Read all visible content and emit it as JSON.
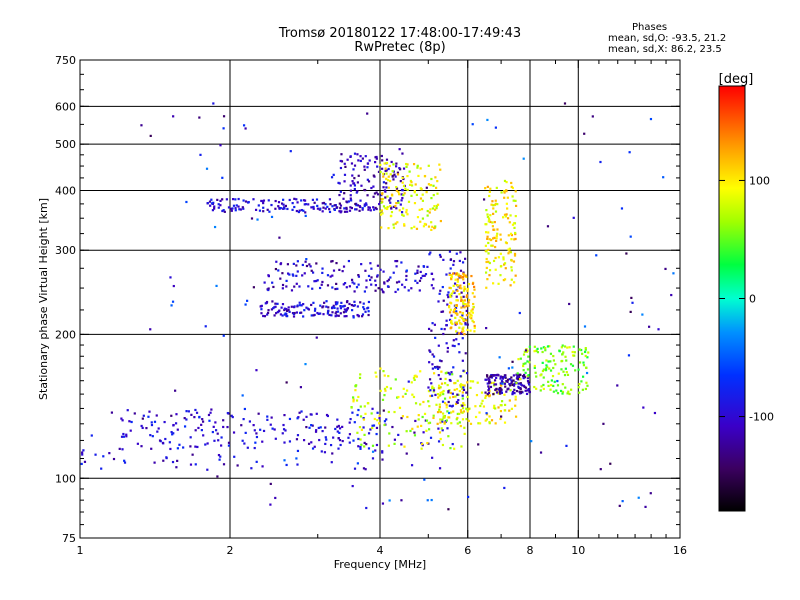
{
  "title_line1": "Tromsø 20180122 17:48:00-17:49:43",
  "title_line2": "RwPretec (8p)",
  "phases": {
    "heading": "Phases",
    "line_o": "mean, sd,O: -93.5, 21.2",
    "line_x": "mean, sd,X:  86.2, 23.5"
  },
  "colorbar": {
    "label": "[deg]",
    "ticks": [
      "100",
      "0",
      "-100"
    ],
    "tick_values": [
      100,
      0,
      -100
    ],
    "range": [
      -180,
      180
    ]
  },
  "chart_data": {
    "type": "scatter",
    "xlabel": "Frequency [MHz]",
    "ylabel": "Stationary phase Virtual Height [km]",
    "xscale": "log",
    "yscale": "log",
    "xlim": [
      1,
      16
    ],
    "ylim": [
      75,
      750
    ],
    "xticks": [
      1,
      2,
      4,
      6,
      8,
      10,
      16
    ],
    "xtick_labels": [
      "1",
      "2",
      "4",
      "6",
      "8",
      "10",
      "16"
    ],
    "yticks": [
      75,
      100,
      200,
      300,
      400,
      500,
      600,
      750
    ],
    "ytick_labels": [
      "75",
      "100",
      "200",
      "300",
      "400",
      "500",
      "600",
      "750"
    ],
    "grid_x": [
      2,
      4,
      6,
      8,
      10
    ],
    "grid_y": [
      100,
      200,
      300,
      400,
      500,
      600
    ],
    "grid": true,
    "color_mapping": "phase_deg",
    "series": [
      {
        "freq_range": [
          1.0,
          5.5
        ],
        "height_range": [
          104,
          140
        ],
        "phase": -100,
        "spread": 0.5
      },
      {
        "freq_range": [
          1.2,
          4.0
        ],
        "height_range": [
          115,
          140
        ],
        "phase": -95,
        "spread": 0.5
      },
      {
        "freq_range": [
          3.5,
          6.0
        ],
        "height_range": [
          115,
          170
        ],
        "phase": 80,
        "spread": 0.5
      },
      {
        "freq_range": [
          5.0,
          7.5
        ],
        "height_range": [
          130,
          160
        ],
        "phase": 95,
        "spread": 0.5
      },
      {
        "freq_range": [
          5.0,
          6.0
        ],
        "height_range": [
          140,
          300
        ],
        "phase": -100,
        "spread": 0.5
      },
      {
        "freq_range": [
          6.5,
          8.0
        ],
        "height_range": [
          150,
          165
        ],
        "phase": -120,
        "spread": 0.5
      },
      {
        "freq_range": [
          7.5,
          10.5
        ],
        "height_range": [
          150,
          190
        ],
        "phase": 60,
        "spread": 0.5
      },
      {
        "freq_range": [
          1.8,
          3.8
        ],
        "height_range": [
          360,
          385
        ],
        "phase": -100,
        "spread": 0.5
      },
      {
        "freq_range": [
          2.3,
          5.0
        ],
        "height_range": [
          245,
          285
        ],
        "phase": -105,
        "spread": 0.5
      },
      {
        "freq_range": [
          2.3,
          3.8
        ],
        "height_range": [
          218,
          235
        ],
        "phase": -100,
        "spread": 0.5
      },
      {
        "freq_range": [
          3.3,
          4.5
        ],
        "height_range": [
          360,
          480
        ],
        "phase": -110,
        "spread": 0.5
      },
      {
        "freq_range": [
          4.0,
          5.3
        ],
        "height_range": [
          330,
          460
        ],
        "phase": 90,
        "spread": 0.5
      },
      {
        "freq_range": [
          6.5,
          7.5
        ],
        "height_range": [
          250,
          420
        ],
        "phase": 100,
        "spread": 0.5
      },
      {
        "freq_range": [
          5.5,
          6.2
        ],
        "height_range": [
          200,
          270
        ],
        "phase": 110,
        "spread": 0.5
      },
      {
        "freq_range": [
          1.3,
          16.0
        ],
        "height_range": [
          85,
          620
        ],
        "phase": -90,
        "spread": 1.0
      }
    ]
  }
}
